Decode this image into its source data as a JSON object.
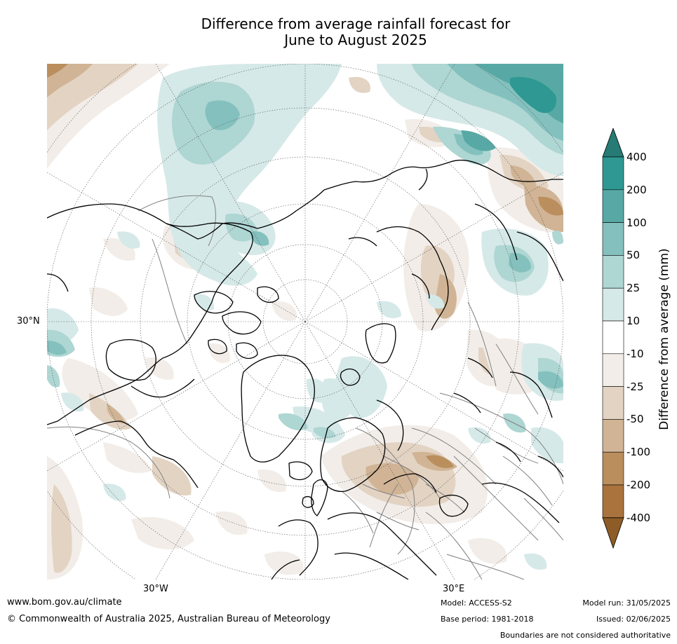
{
  "title": {
    "line1": "Difference from average rainfall forecast for",
    "line2": "June to August 2025"
  },
  "map": {
    "projection": "north-polar-stereographic",
    "lat_label": "30°N",
    "lon_labels": {
      "west": "30°W",
      "east": "30°E"
    },
    "ocean_color": "#ffffff",
    "coastline_color": "#000000",
    "border_color": "#808080"
  },
  "legend": {
    "title": "Difference from average (mm)",
    "levels": [
      "400",
      "200",
      "100",
      "50",
      "25",
      "10",
      "-10",
      "-25",
      "-50",
      "-100",
      "-200",
      "-400"
    ],
    "colors": {
      "gt400": "#267b74",
      "200_400": "#2f9892",
      "100_200": "#58a9a6",
      "50_100": "#84c1be",
      "25_50": "#aed6d3",
      "10_25": "#d5e9e8",
      "neutral": "#ffffff",
      "n10_n25": "#f2ede8",
      "n25_n50": "#e3d3c3",
      "n50_n100": "#d0b495",
      "n100_n200": "#bb8e5e",
      "n200_n400": "#aa733d",
      "lt_n400": "#8e5c26"
    }
  },
  "footer": {
    "website": "www.bom.gov.au/climate",
    "copyright": "© Commonwealth of Australia 2025, Australian Bureau of Meteorology",
    "model": "Model: ACCESS-S2",
    "base_period": "Base period: 1981-2018",
    "model_run": "Model run: 31/05/2025",
    "issued": "Issued: 02/06/2025",
    "disclaimer": "Boundaries are not considered authoritative"
  }
}
